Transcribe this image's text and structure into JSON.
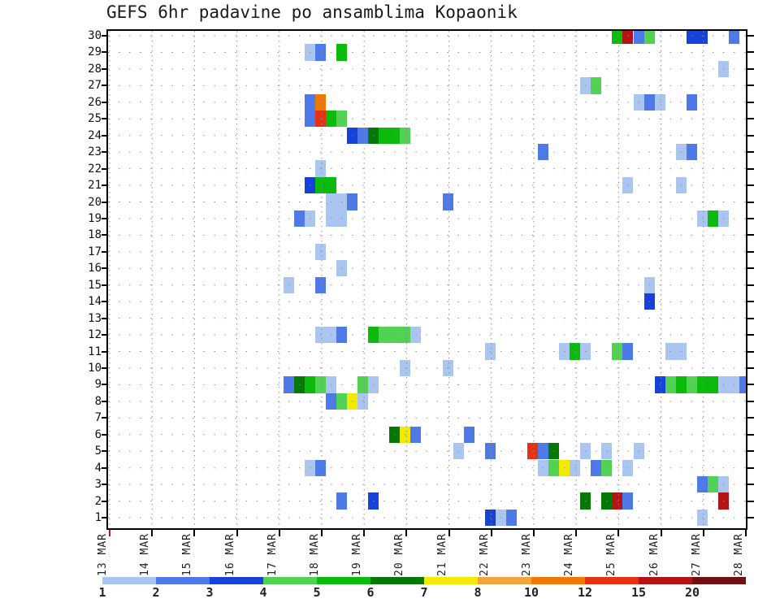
{
  "title": "GEFS 6hr padavine po ansamblima Kopaonik",
  "y_axis": {
    "label_meaning": "ensemble member",
    "labels": [
      "30",
      "29",
      "28",
      "27",
      "26",
      "25",
      "24",
      "23",
      "22",
      "21",
      "20",
      "19",
      "18",
      "17",
      "16",
      "15",
      "14",
      "13",
      "12",
      "11",
      "10",
      "9",
      "8",
      "7",
      "6",
      "5",
      "4",
      "3",
      "2",
      "1"
    ]
  },
  "x_axis": {
    "labels": [
      "13 MAR",
      "14 MAR",
      "15 MAR",
      "16 MAR",
      "17 MAR",
      "18 MAR",
      "19 MAR",
      "20 MAR",
      "21 MAR",
      "22 MAR",
      "23 MAR",
      "24 MAR",
      "25 MAR",
      "26 MAR",
      "27 MAR",
      "28 MAR"
    ],
    "start_marker_color": "#cc1111"
  },
  "colorbar": {
    "segments": [
      {
        "label": "1",
        "color": "#aac6f0"
      },
      {
        "label": "2",
        "color": "#4d7ae8"
      },
      {
        "label": "3",
        "color": "#1742d9"
      },
      {
        "label": "4",
        "color": "#52d252"
      },
      {
        "label": "5",
        "color": "#0bbb0b"
      },
      {
        "label": "6",
        "color": "#067806"
      },
      {
        "label": "7",
        "color": "#f2ea00"
      },
      {
        "label": "8",
        "color": "#f2a43c"
      },
      {
        "label": "10",
        "color": "#f07800"
      },
      {
        "label": "12",
        "color": "#e63213"
      },
      {
        "label": "15",
        "color": "#b51417"
      },
      {
        "label": "20",
        "color": "#701010"
      }
    ]
  },
  "chart_data": {
    "type": "heatmap",
    "title": "GEFS 6hr padavine po ansamblima Kopaonik",
    "x": "time in 6-hour steps from 13 MAR to 28 MAR",
    "y": "ensemble members 1..30",
    "steps_per_day": 4,
    "days": 15,
    "value_classes_mm": {
      "lb": "1-2",
      "b": "2-3",
      "db": "3-4",
      "lg": "4-5",
      "g": "5-6",
      "dg": "6-7",
      "y": "7-8",
      "lo": "8-10",
      "o": "10-12",
      "r": "12-15",
      "dr": "15-20",
      "ddr": "20+"
    },
    "palette": {
      "lb": "#aac6f0",
      "b": "#4d7ae8",
      "db": "#1742d9",
      "lg": "#52d252",
      "g": "#0bbb0b",
      "dg": "#067806",
      "y": "#f2ea00",
      "lo": "#f2a43c",
      "o": "#f07800",
      "r": "#e63213",
      "dr": "#b51417",
      "ddr": "#701010"
    },
    "cells": [
      [
        30,
        48,
        "g"
      ],
      [
        30,
        49,
        "dr"
      ],
      [
        30,
        50,
        "b"
      ],
      [
        30,
        51,
        "lg"
      ],
      [
        30,
        55,
        "db"
      ],
      [
        30,
        56,
        "db"
      ],
      [
        30,
        59,
        "b"
      ],
      [
        29,
        19,
        "lb"
      ],
      [
        29,
        20,
        "b"
      ],
      [
        29,
        22,
        "g"
      ],
      [
        28,
        58,
        "lb"
      ],
      [
        27,
        45,
        "lb"
      ],
      [
        27,
        46,
        "lg"
      ],
      [
        26,
        19,
        "b"
      ],
      [
        26,
        20,
        "o"
      ],
      [
        26,
        50,
        "lb"
      ],
      [
        26,
        51,
        "b"
      ],
      [
        26,
        52,
        "lb"
      ],
      [
        26,
        55,
        "b"
      ],
      [
        25,
        19,
        "b"
      ],
      [
        25,
        20,
        "r"
      ],
      [
        25,
        21,
        "g"
      ],
      [
        25,
        22,
        "lg"
      ],
      [
        24,
        23,
        "db"
      ],
      [
        24,
        24,
        "b"
      ],
      [
        24,
        25,
        "dg"
      ],
      [
        24,
        26,
        "g"
      ],
      [
        24,
        27,
        "g"
      ],
      [
        24,
        28,
        "lg"
      ],
      [
        23,
        41,
        "b"
      ],
      [
        23,
        54,
        "lb"
      ],
      [
        23,
        55,
        "b"
      ],
      [
        22,
        20,
        "lb"
      ],
      [
        21,
        19,
        "db"
      ],
      [
        21,
        20,
        "g"
      ],
      [
        21,
        21,
        "g"
      ],
      [
        21,
        49,
        "lb"
      ],
      [
        21,
        54,
        "lb"
      ],
      [
        20,
        21,
        "lb"
      ],
      [
        20,
        22,
        "lb"
      ],
      [
        20,
        23,
        "b"
      ],
      [
        20,
        32,
        "b"
      ],
      [
        19,
        18,
        "b"
      ],
      [
        19,
        19,
        "lb"
      ],
      [
        19,
        21,
        "lb"
      ],
      [
        19,
        22,
        "lb"
      ],
      [
        19,
        56,
        "lb"
      ],
      [
        19,
        57,
        "g"
      ],
      [
        19,
        58,
        "lb"
      ],
      [
        17,
        20,
        "lb"
      ],
      [
        16,
        22,
        "lb"
      ],
      [
        15,
        17,
        "lb"
      ],
      [
        15,
        20,
        "b"
      ],
      [
        15,
        51,
        "lb"
      ],
      [
        14,
        51,
        "db"
      ],
      [
        12,
        20,
        "lb"
      ],
      [
        12,
        21,
        "lb"
      ],
      [
        12,
        22,
        "b"
      ],
      [
        12,
        25,
        "g"
      ],
      [
        12,
        26,
        "lg"
      ],
      [
        12,
        27,
        "lg"
      ],
      [
        12,
        28,
        "lg"
      ],
      [
        12,
        29,
        "lb"
      ],
      [
        11,
        36,
        "lb"
      ],
      [
        11,
        43,
        "lb"
      ],
      [
        11,
        44,
        "g"
      ],
      [
        11,
        45,
        "lb"
      ],
      [
        11,
        48,
        "lg"
      ],
      [
        11,
        49,
        "b"
      ],
      [
        11,
        53,
        "lb"
      ],
      [
        11,
        54,
        "lb"
      ],
      [
        10,
        28,
        "lb"
      ],
      [
        10,
        32,
        "lb"
      ],
      [
        9,
        17,
        "b"
      ],
      [
        9,
        18,
        "dg"
      ],
      [
        9,
        19,
        "g"
      ],
      [
        9,
        20,
        "lg"
      ],
      [
        9,
        21,
        "lb"
      ],
      [
        9,
        24,
        "lg"
      ],
      [
        9,
        25,
        "lb"
      ],
      [
        9,
        52,
        "db"
      ],
      [
        9,
        53,
        "lg"
      ],
      [
        9,
        54,
        "g"
      ],
      [
        9,
        55,
        "lg"
      ],
      [
        9,
        56,
        "g"
      ],
      [
        9,
        57,
        "g"
      ],
      [
        9,
        58,
        "lb"
      ],
      [
        9,
        59,
        "lb"
      ],
      [
        9,
        60,
        "b"
      ],
      [
        8,
        21,
        "b"
      ],
      [
        8,
        22,
        "lg"
      ],
      [
        8,
        23,
        "y"
      ],
      [
        8,
        24,
        "lb"
      ],
      [
        6,
        27,
        "dg"
      ],
      [
        6,
        28,
        "y"
      ],
      [
        6,
        29,
        "b"
      ],
      [
        6,
        34,
        "b"
      ],
      [
        5,
        33,
        "lb"
      ],
      [
        5,
        36,
        "b"
      ],
      [
        5,
        40,
        "r"
      ],
      [
        5,
        41,
        "b"
      ],
      [
        5,
        42,
        "dg"
      ],
      [
        5,
        45,
        "lb"
      ],
      [
        5,
        47,
        "lb"
      ],
      [
        5,
        50,
        "lb"
      ],
      [
        4,
        19,
        "lb"
      ],
      [
        4,
        20,
        "b"
      ],
      [
        4,
        41,
        "lb"
      ],
      [
        4,
        42,
        "lg"
      ],
      [
        4,
        43,
        "y"
      ],
      [
        4,
        44,
        "lb"
      ],
      [
        4,
        46,
        "b"
      ],
      [
        4,
        47,
        "lg"
      ],
      [
        4,
        49,
        "lb"
      ],
      [
        3,
        56,
        "b"
      ],
      [
        3,
        57,
        "lg"
      ],
      [
        3,
        58,
        "lb"
      ],
      [
        2,
        22,
        "b"
      ],
      [
        2,
        25,
        "db"
      ],
      [
        2,
        45,
        "dg"
      ],
      [
        2,
        47,
        "dg"
      ],
      [
        2,
        48,
        "dr"
      ],
      [
        2,
        49,
        "b"
      ],
      [
        2,
        58,
        "dr"
      ],
      [
        1,
        36,
        "db"
      ],
      [
        1,
        37,
        "lb"
      ],
      [
        1,
        38,
        "b"
      ],
      [
        1,
        56,
        "lb"
      ]
    ]
  }
}
